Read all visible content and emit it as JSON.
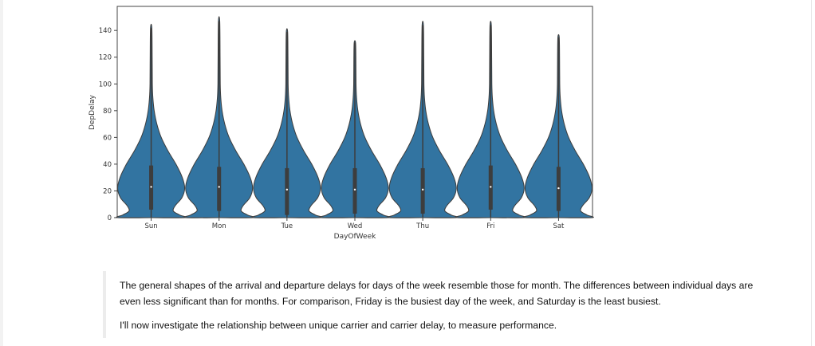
{
  "chart_data": {
    "type": "violin",
    "xlabel": "DayOfWeek",
    "ylabel": "DepDelay",
    "ylim": [
      0,
      158
    ],
    "yticks": [
      0,
      20,
      40,
      60,
      80,
      100,
      120,
      140
    ],
    "categories": [
      "Sun",
      "Mon",
      "Tue",
      "Wed",
      "Thu",
      "Fri",
      "Sat"
    ],
    "max": [
      142,
      147,
      139,
      131,
      144,
      144,
      135
    ],
    "q1": [
      6,
      5,
      2,
      3,
      3,
      6,
      5
    ],
    "median": [
      23,
      23,
      21,
      21,
      21,
      23,
      22
    ],
    "q3": [
      39,
      38,
      37,
      37,
      37,
      39,
      38
    ],
    "min": [
      0,
      0,
      0,
      0,
      0,
      0,
      0
    ],
    "color": "#3274a1",
    "grid": false
  },
  "notes": {
    "paragraph1": "The general shapes of the arrival and departure delays for days of the week resemble those for month. The differences between individual days are even less significant than for months. For comparison, Friday is the busiest day of the week, and Saturday is the least busiest.",
    "paragraph2": "I'll now investigate the relationship between unique carrier and carrier delay, to measure performance."
  }
}
